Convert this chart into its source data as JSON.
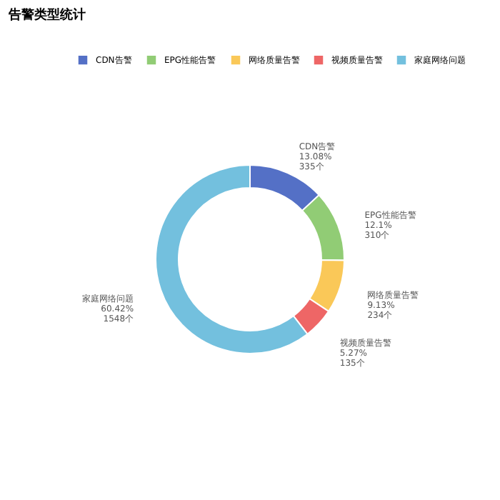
{
  "chart_data": {
    "type": "donut",
    "title": "告警类型统计",
    "categories": [
      "CDN告警",
      "EPG性能告警",
      "网络质量告警",
      "视频质量告警",
      "家庭网络问题"
    ],
    "values": [
      335,
      310,
      234,
      135,
      1548
    ],
    "colors": [
      "#5470c6",
      "#91cc75",
      "#fac858",
      "#ee6666",
      "#73c0de"
    ],
    "value_labels": [
      "13.08%\n335个",
      "12.1%\n310个",
      "9.13%\n234个",
      "5.27%\n135个",
      "60.42%\n1548个"
    ],
    "legend": "top right"
  }
}
